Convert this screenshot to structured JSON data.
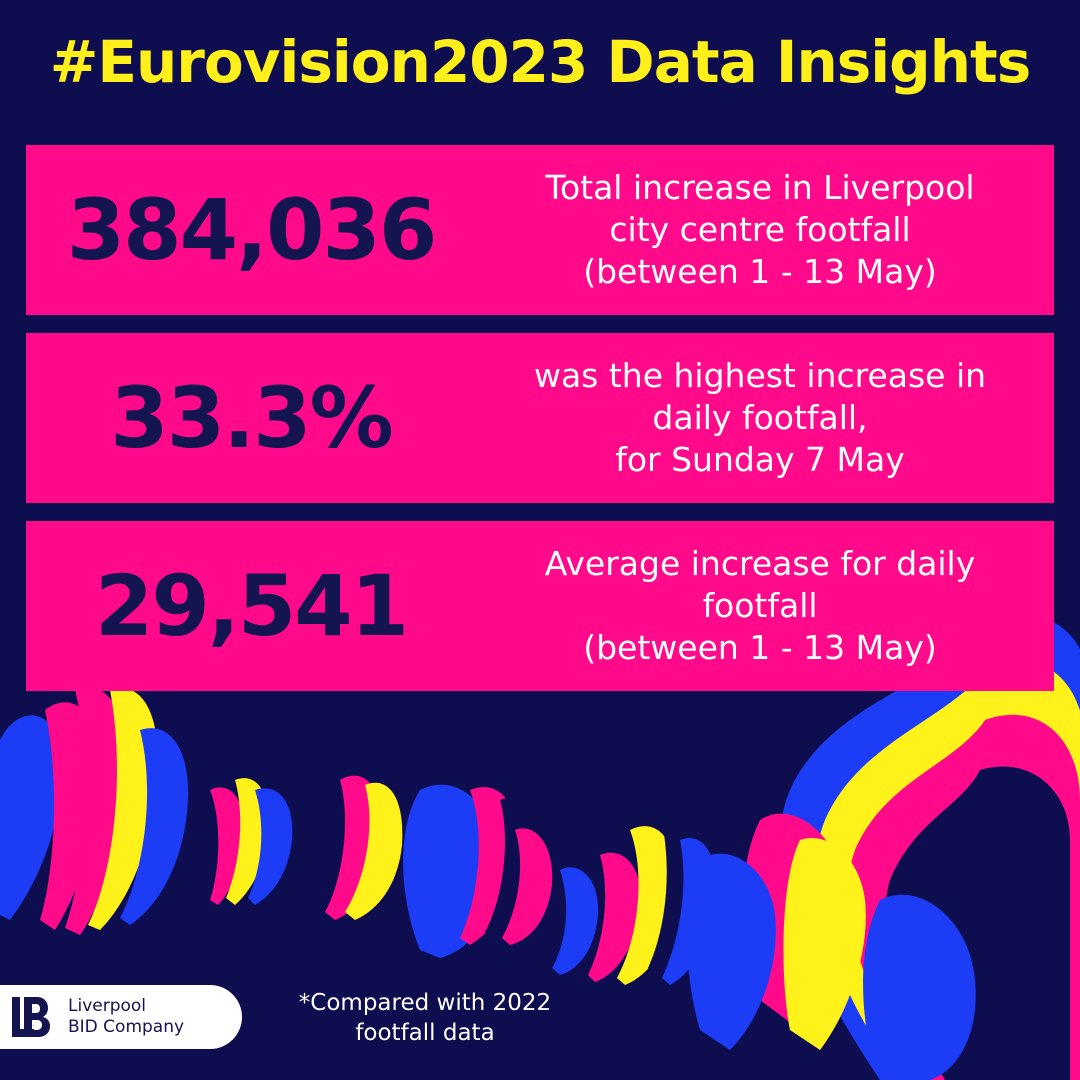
{
  "title": "#Eurovision2023 Data Insights",
  "stats": [
    {
      "value": "384,036",
      "description": [
        "Total increase in Liverpool",
        "city centre footfall",
        "(between 1 - 13 May)"
      ]
    },
    {
      "value": "33.3%",
      "description": [
        "was the highest increase in",
        "daily footfall,",
        "for Sunday 7 May"
      ]
    },
    {
      "value": "29,541",
      "description": [
        "Average increase for daily",
        "footfall",
        "(between 1 - 13 May)"
      ]
    }
  ],
  "logo": {
    "icon": "liverpool-bid-logo-mark",
    "line1": "Liverpool",
    "line2": "BID Company"
  },
  "footnote": [
    "*Compared with 2022",
    "footfall data"
  ],
  "colors": {
    "background": "#0d0d4f",
    "title": "#ffef1a",
    "card": "#ff0a8b",
    "value_text": "#141451",
    "pink": "#ff0a8b",
    "yellow": "#fff21a",
    "blue": "#1c3cf5"
  }
}
